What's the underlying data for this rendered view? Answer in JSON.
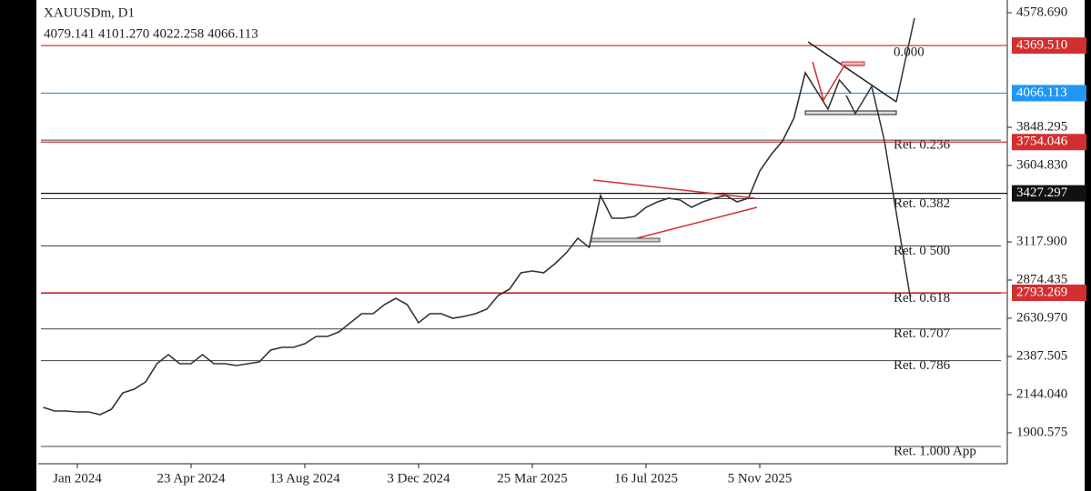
{
  "chart_data": {
    "type": "line",
    "symbol": "XAUUSDm, D1",
    "ohlc": "4079.141 4101.270 4022.258 4066.113",
    "categories": [
      null,
      null,
      null,
      "Jan 2024",
      null,
      null,
      null,
      null,
      null,
      null,
      null,
      null,
      null,
      "23 Apr 2024",
      null,
      null,
      null,
      null,
      null,
      null,
      null,
      null,
      null,
      "13 Aug 2024",
      null,
      null,
      null,
      null,
      null,
      null,
      null,
      null,
      null,
      "3 Dec 2024",
      null,
      null,
      null,
      null,
      null,
      null,
      null,
      null,
      null,
      "25 Mar 2025",
      null,
      null,
      null,
      null,
      null,
      null,
      null,
      null,
      null,
      "16 Jul 2025",
      null,
      null,
      null,
      null,
      null,
      null,
      null,
      null,
      null,
      "5 Nov 2025",
      null,
      null,
      null,
      null,
      null,
      null,
      null,
      null
    ],
    "series": [
      {
        "color": "#333333",
        "values": [
          2062.8,
          2039.6,
          2039.6,
          2034.0,
          2034.0,
          2016.5,
          2051.0,
          2155.6,
          2178.8,
          2225.0,
          2341.0,
          2399.0,
          2341.0,
          2341.0,
          2399.0,
          2341.0,
          2341.0,
          2329.5,
          2341.0,
          2352.7,
          2428.0,
          2445.4,
          2445.4,
          2468.5,
          2515.0,
          2515.0,
          2544.0,
          2602.0,
          2660.0,
          2660.0,
          2718.0,
          2758.5,
          2718.0,
          2602.0,
          2660.0,
          2660.0,
          2631.0,
          2642.5,
          2660.0,
          2689.0,
          2775.8,
          2816.5,
          2920.8,
          2932.4,
          2920.8,
          2978.8,
          3048.3,
          3141.0,
          3083.0,
          3413.5,
          3268.6,
          3268.6,
          3280.0,
          3338.0,
          3373.0,
          3396.0,
          3384.5,
          3338.0,
          3373.0,
          3396.0,
          3413.5,
          3373.0,
          3396.0,
          3570.0,
          3674.4,
          3761.3,
          3906.3,
          4196.0,
          4080.0,
          3964.0,
          4149.7,
          4066.1
        ]
      }
    ],
    "ylim": [
      1703.5,
      4659.8
    ],
    "yticks": [
      {
        "value": 4578.69,
        "label": "4578.690"
      },
      {
        "value": 3848.295,
        "label": "3848.295"
      },
      {
        "value": 3604.83,
        "label": "3604.830"
      },
      {
        "value": 3117.9,
        "label": "3117.900"
      },
      {
        "value": 2874.435,
        "label": "2874.435"
      },
      {
        "value": 2630.97,
        "label": "2630.970"
      },
      {
        "value": 2387.505,
        "label": "2387.505"
      },
      {
        "value": 2144.04,
        "label": "2144.040"
      },
      {
        "value": 1900.575,
        "label": "1900.575"
      }
    ],
    "price_levels": [
      {
        "value": 4369.51,
        "label": "4369.510",
        "color": "#d32f2f"
      },
      {
        "value": 4066.113,
        "label": "4066.113",
        "color": "#2196f3"
      },
      {
        "value": 3754.046,
        "label": "3754.046",
        "color": "#d32f2f"
      },
      {
        "value": 3427.297,
        "label": "3427.297",
        "color": "#111111"
      },
      {
        "value": 2793.269,
        "label": "2793.269",
        "color": "#d32f2f"
      }
    ],
    "fib_levels": [
      {
        "value": 4369.51,
        "label": "0.000"
      },
      {
        "value": 3766.3,
        "label": "Ret. 0.236"
      },
      {
        "value": 3393.2,
        "label": "Ret. 0.382"
      },
      {
        "value": 3091.6,
        "label": "Ret. 0 500"
      },
      {
        "value": 2789.9,
        "label": "Ret. 0.618"
      },
      {
        "value": 2562.5,
        "label": "Ret. 0.707"
      },
      {
        "value": 2360.6,
        "label": "Ret. 0.786"
      },
      {
        "value": 1813.6,
        "label": "Ret. 1.000 App"
      }
    ],
    "fib_color": "#444444"
  }
}
